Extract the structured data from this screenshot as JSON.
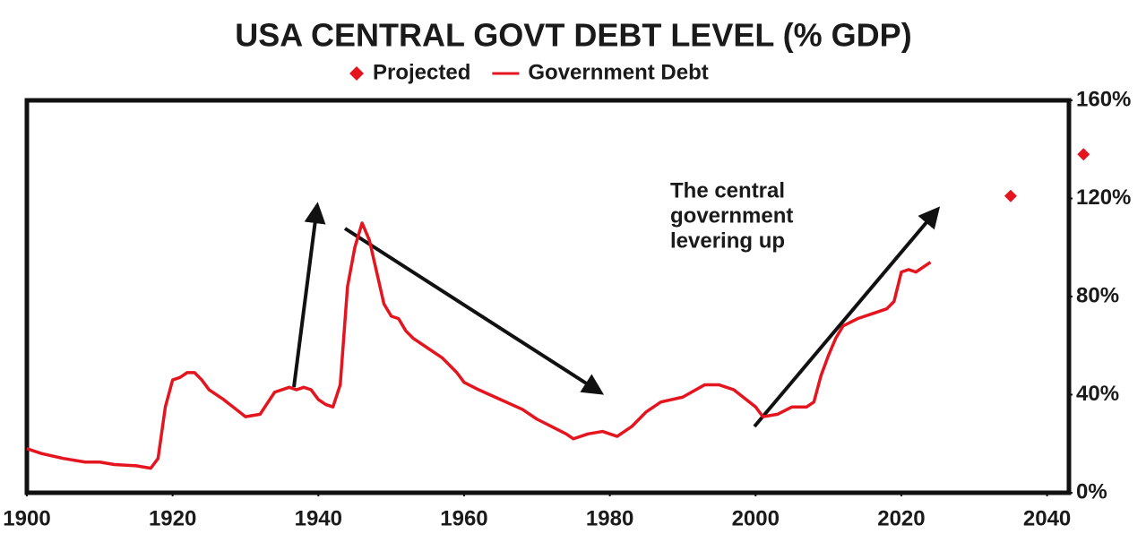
{
  "chart_data": {
    "type": "line",
    "title": "USA CENTRAL GOVT DEBT LEVEL (% GDP)",
    "xlim": [
      1900,
      2043
    ],
    "xticks": [
      1900,
      1920,
      1940,
      1960,
      1980,
      2000,
      2020,
      2040
    ],
    "ylim": [
      0,
      160
    ],
    "yticks": [
      {
        "value": 0,
        "label": "0%"
      },
      {
        "value": 40,
        "label": "40%"
      },
      {
        "value": 80,
        "label": "80%"
      },
      {
        "value": 120,
        "label": "120%"
      },
      {
        "value": 160,
        "label": "160%"
      }
    ],
    "y_axis_side": "right",
    "annotation": [
      "The central",
      "government",
      "levering up"
    ],
    "series": [
      {
        "name": "Projected",
        "color": "#e4151f",
        "marker": "diamond",
        "x": [
          2035,
          2045
        ],
        "values": [
          121,
          138
        ]
      },
      {
        "name": "Government Debt",
        "color": "#e4151f",
        "marker": "line",
        "x": [
          1900,
          1902,
          1905,
          1908,
          1910,
          1912,
          1915,
          1917,
          1918,
          1919,
          1920,
          1921,
          1922,
          1923,
          1924,
          1925,
          1927,
          1930,
          1932,
          1934,
          1936,
          1937,
          1938,
          1939,
          1940,
          1941,
          1942,
          1943,
          1944,
          1945,
          1946,
          1947,
          1948,
          1949,
          1950,
          1951,
          1952,
          1953,
          1955,
          1957,
          1959,
          1960,
          1962,
          1965,
          1968,
          1970,
          1972,
          1974,
          1975,
          1977,
          1979,
          1981,
          1983,
          1985,
          1987,
          1990,
          1993,
          1995,
          1997,
          2000,
          2001,
          2003,
          2005,
          2007,
          2008,
          2009,
          2010,
          2011,
          2012,
          2014,
          2016,
          2018,
          2019,
          2020,
          2021,
          2022,
          2024
        ],
        "values": [
          18,
          16,
          14,
          12.5,
          12.5,
          11.5,
          11,
          10,
          14,
          35,
          46,
          47,
          49,
          49,
          46,
          42,
          38,
          31,
          32,
          41,
          43,
          42,
          43,
          42,
          38,
          36,
          35,
          44,
          84,
          100,
          110,
          103,
          90,
          77,
          72,
          71,
          66,
          63,
          59,
          55,
          49,
          45,
          42,
          38,
          34,
          30,
          27,
          24,
          22,
          24,
          25,
          23,
          27,
          33,
          37,
          39,
          44,
          44,
          42,
          35,
          31,
          32,
          35,
          35,
          37,
          48,
          56,
          63,
          68,
          71,
          73,
          75,
          78,
          90,
          91,
          90,
          94
        ]
      }
    ]
  }
}
